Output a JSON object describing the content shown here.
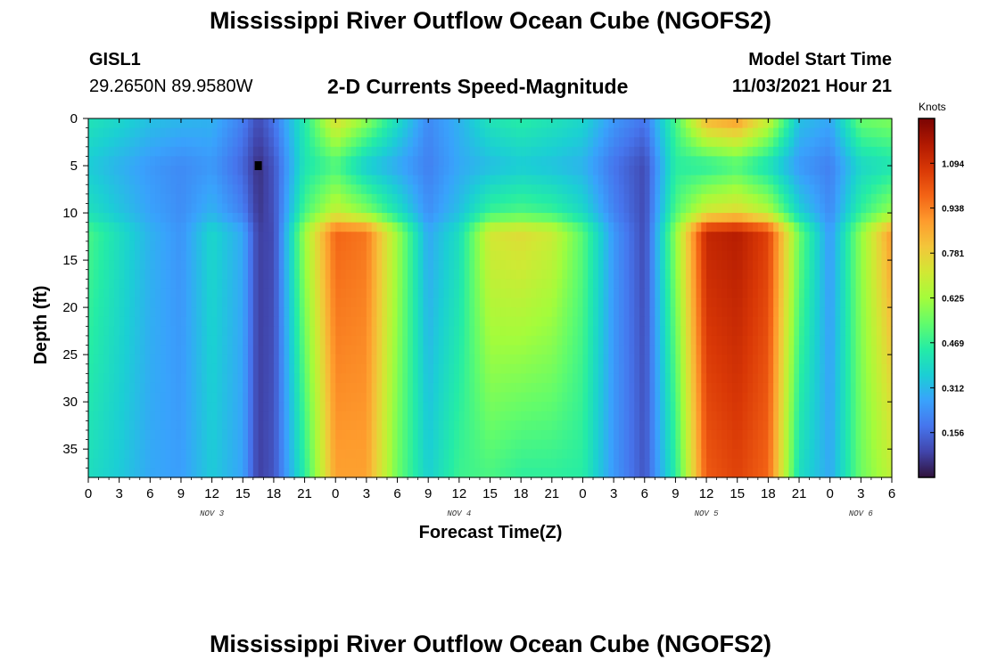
{
  "page": {
    "title": "Mississippi River Outflow Ocean Cube (NGOFS2)",
    "station_id": "GISL1",
    "station_coords": "29.2650N  89.9580W",
    "subtitle": "2-D Currents Speed-Magnitude",
    "model_start_label": "Model Start Time",
    "model_start_value": "11/03/2021 Hour 21",
    "footer_title": "Mississippi River Outflow Ocean Cube (NGOFS2)"
  },
  "chart_data": {
    "type": "heatmap",
    "title": "2-D Currents Speed-Magnitude",
    "xlabel": "Forecast Time(Z)",
    "ylabel": "Depth (ft)",
    "x_ticks": [
      "0",
      "3",
      "6",
      "9",
      "12",
      "15",
      "18",
      "21",
      "0",
      "3",
      "6",
      "9",
      "12",
      "15",
      "18",
      "21",
      "0",
      "3",
      "6",
      "9",
      "12",
      "15",
      "18",
      "21",
      "0",
      "3",
      "6"
    ],
    "x_hours_range": [
      0,
      78
    ],
    "day_labels": [
      {
        "text": "NOV 3",
        "at_hour": 12
      },
      {
        "text": "NOV 4",
        "at_hour": 36
      },
      {
        "text": "NOV 5",
        "at_hour": 60
      },
      {
        "text": "NOV 6",
        "at_hour": 75
      }
    ],
    "y_ticks": [
      0,
      5,
      10,
      15,
      20,
      25,
      30,
      35
    ],
    "ylim": [
      0,
      38
    ],
    "colorbar": {
      "unit": "Knots",
      "range": [
        0,
        1.25
      ],
      "ticks": [
        "0.156",
        "0.312",
        "0.469",
        "0.625",
        "0.781",
        "0.938",
        "1.094"
      ],
      "colors": [
        "#30123b",
        "#4145ab",
        "#4675ed",
        "#39a2fc",
        "#1bcfd4",
        "#24eca6",
        "#61fc6c",
        "#a4fc3b",
        "#d1e834",
        "#f3c63a",
        "#fe9b2d",
        "#f36315",
        "#d93806",
        "#b11901",
        "#7a0403"
      ]
    },
    "grid": false,
    "time_columns": {
      "hours": [
        0,
        3,
        6,
        9,
        12,
        15,
        16.5,
        18,
        21,
        24,
        27,
        30,
        33,
        36,
        39,
        42,
        45,
        48,
        51,
        54,
        57,
        60,
        63,
        66,
        69,
        72,
        75,
        78
      ],
      "surface": [
        0.42,
        0.38,
        0.33,
        0.31,
        0.3,
        0.2,
        0.1,
        0.18,
        0.44,
        0.75,
        0.6,
        0.4,
        0.22,
        0.3,
        0.42,
        0.45,
        0.42,
        0.38,
        0.25,
        0.18,
        0.5,
        0.85,
        0.9,
        0.7,
        0.33,
        0.28,
        0.55,
        0.58
      ],
      "upper": [
        0.35,
        0.3,
        0.25,
        0.22,
        0.25,
        0.15,
        0.05,
        0.12,
        0.42,
        0.5,
        0.35,
        0.28,
        0.2,
        0.28,
        0.32,
        0.35,
        0.33,
        0.3,
        0.18,
        0.1,
        0.45,
        0.45,
        0.5,
        0.4,
        0.25,
        0.2,
        0.38,
        0.42
      ],
      "mid": [
        0.5,
        0.4,
        0.3,
        0.24,
        0.38,
        0.28,
        0.08,
        0.1,
        0.62,
        0.98,
        0.95,
        0.62,
        0.28,
        0.4,
        0.72,
        0.75,
        0.7,
        0.52,
        0.25,
        0.1,
        0.6,
        1.12,
        1.15,
        1.05,
        0.55,
        0.25,
        0.6,
        0.9
      ],
      "bottom": [
        0.4,
        0.35,
        0.28,
        0.26,
        0.35,
        0.27,
        0.08,
        0.12,
        0.45,
        0.88,
        0.88,
        0.55,
        0.36,
        0.48,
        0.5,
        0.46,
        0.46,
        0.45,
        0.25,
        0.12,
        0.45,
        1.0,
        1.05,
        0.98,
        0.4,
        0.28,
        0.55,
        0.68
      ]
    },
    "marker": {
      "hour": 16.5,
      "depth": 5
    }
  }
}
